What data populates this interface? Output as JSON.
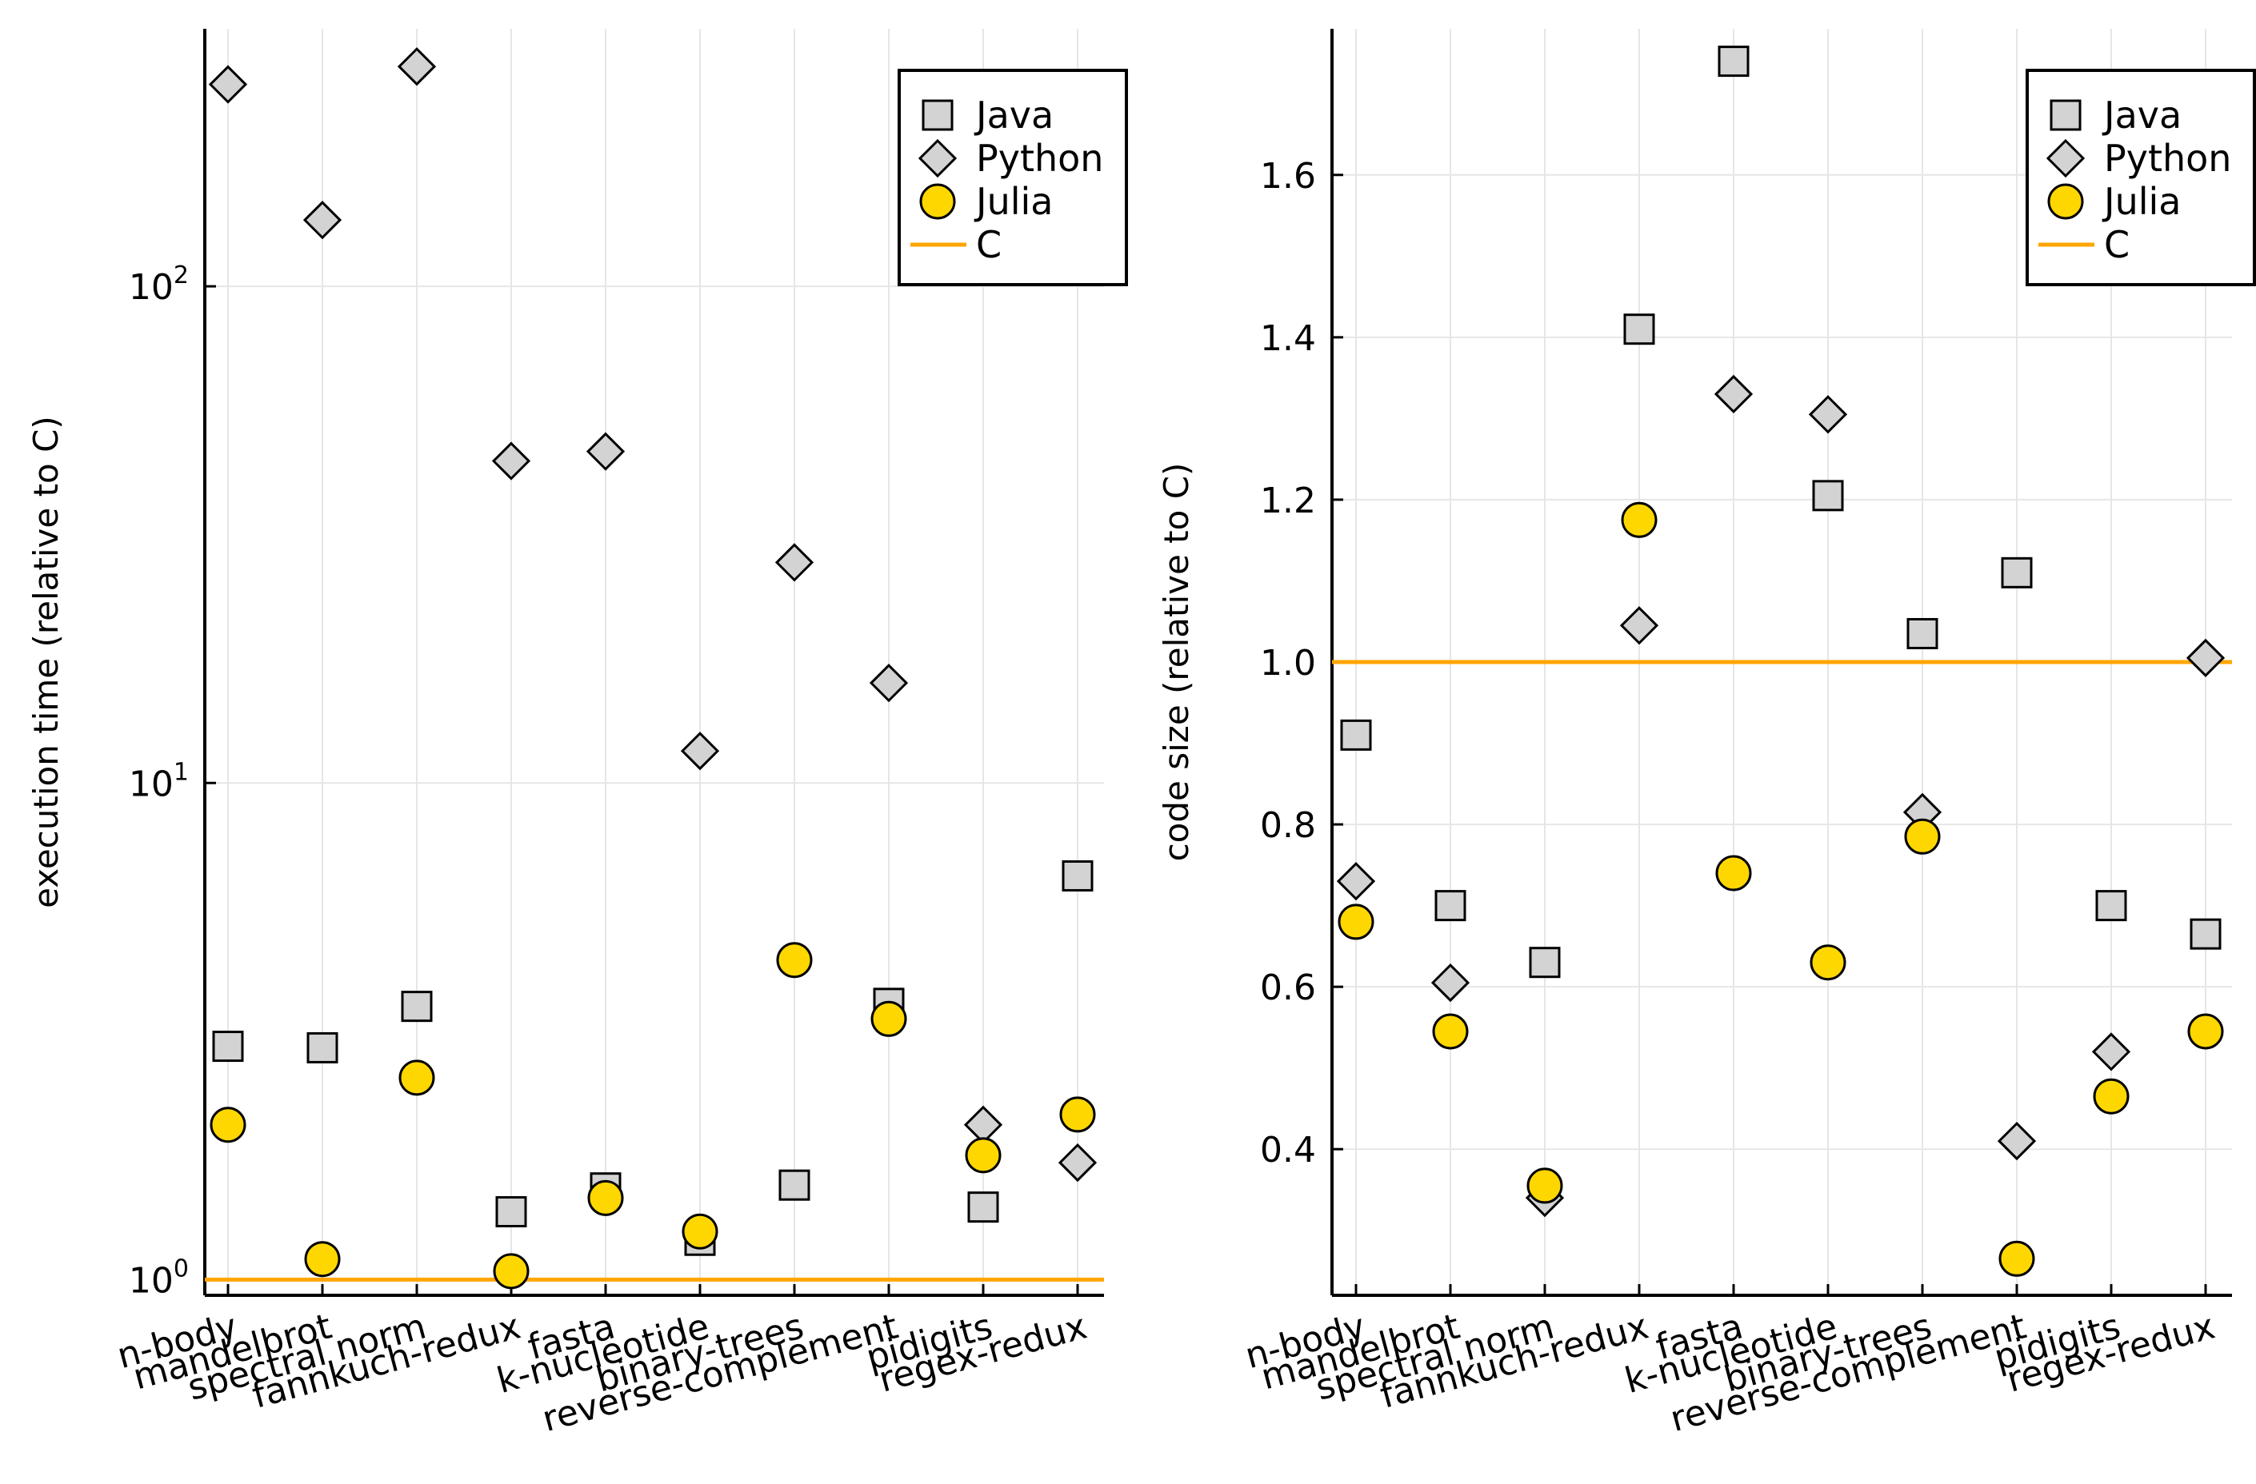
{
  "chart_data": [
    {
      "type": "scatter",
      "yscale": "log10",
      "ylabel": "execution time (relative to C)",
      "xlabel": "",
      "ylim": [
        0.93,
        330
      ],
      "grid": true,
      "legend_position": "top-right",
      "categories": [
        "n-body",
        "mandelbrot",
        "spectral norm",
        "fannkuch-redux",
        "fasta",
        "k-nucleotide",
        "binary-trees",
        "reverse-complement",
        "pidigits",
        "regex-redux"
      ],
      "y_ticks": [
        {
          "value": 1,
          "base": "10",
          "exp": "0"
        },
        {
          "value": 10,
          "base": "10",
          "exp": "1"
        },
        {
          "value": 100,
          "base": "10",
          "exp": "2"
        }
      ],
      "series": [
        {
          "name": "Java",
          "marker": "square",
          "color": "#d3d3d3",
          "values": [
            2.95,
            2.93,
            3.55,
            1.37,
            1.53,
            1.2,
            1.55,
            3.6,
            1.4,
            6.5
          ]
        },
        {
          "name": "Python",
          "marker": "diamond",
          "color": "#d3d3d3",
          "values": [
            255,
            136,
            277,
            44.5,
            46.5,
            11.6,
            27.8,
            15.9,
            2.05,
            1.72
          ]
        },
        {
          "name": "Julia",
          "marker": "circle",
          "color": "#ffd700",
          "values": [
            2.05,
            1.1,
            2.55,
            1.04,
            1.46,
            1.25,
            4.4,
            3.35,
            1.78,
            2.15
          ]
        }
      ],
      "reference_line": {
        "name": "C",
        "value": 1.0,
        "color": "#ffa500"
      }
    },
    {
      "type": "scatter",
      "yscale": "linear",
      "ylabel": "code size (relative to C)",
      "xlabel": "",
      "ylim": [
        0.22,
        1.78
      ],
      "grid": true,
      "legend_position": "top-right",
      "categories": [
        "n-body",
        "mandelbrot",
        "spectral norm",
        "fannkuch-redux",
        "fasta",
        "k-nucleotide",
        "binary-trees",
        "reverse-complement",
        "pidigits",
        "regex-redux"
      ],
      "y_ticks": [
        {
          "value": 0.4,
          "label": "0.4"
        },
        {
          "value": 0.6,
          "label": "0.6"
        },
        {
          "value": 0.8,
          "label": "0.8"
        },
        {
          "value": 1.0,
          "label": "1.0"
        },
        {
          "value": 1.2,
          "label": "1.2"
        },
        {
          "value": 1.4,
          "label": "1.4"
        },
        {
          "value": 1.6,
          "label": "1.6"
        }
      ],
      "series": [
        {
          "name": "Java",
          "marker": "square",
          "color": "#d3d3d3",
          "values": [
            0.91,
            0.7,
            0.63,
            1.41,
            1.74,
            1.205,
            1.035,
            1.11,
            0.7,
            0.665
          ]
        },
        {
          "name": "Python",
          "marker": "diamond",
          "color": "#d3d3d3",
          "values": [
            0.73,
            0.605,
            0.34,
            1.045,
            1.33,
            1.305,
            0.815,
            0.41,
            0.52,
            1.005
          ]
        },
        {
          "name": "Julia",
          "marker": "circle",
          "color": "#ffd700",
          "values": [
            0.68,
            0.545,
            0.355,
            1.175,
            0.74,
            0.63,
            0.785,
            0.265,
            0.465,
            0.545
          ]
        }
      ],
      "reference_line": {
        "name": "C",
        "value": 1.0,
        "color": "#ffa500"
      }
    }
  ]
}
